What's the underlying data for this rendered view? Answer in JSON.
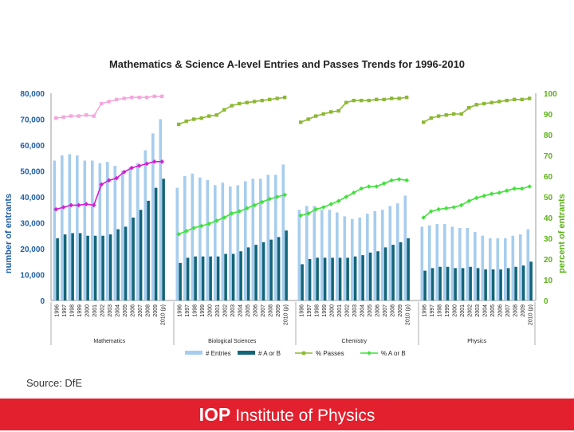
{
  "chart_data": {
    "type": "bar",
    "title": "Mathematics & Science A-level Entries and Passes Trends for 1996-2010",
    "ylabel": "number of entrants",
    "y2label": "percent of entrants",
    "ylim": [
      0,
      80000
    ],
    "y2lim": [
      0,
      100
    ],
    "y_ticks": [
      "0",
      "10,000",
      "20,000",
      "30,000",
      "40,000",
      "50,000",
      "60,000",
      "70,000",
      "80,000"
    ],
    "y2_ticks": [
      "0",
      "10",
      "20",
      "30",
      "40",
      "50",
      "60",
      "70",
      "80",
      "90",
      "100"
    ],
    "years": [
      "1996",
      "1997",
      "1998",
      "1999",
      "2000",
      "2001",
      "2002",
      "2003",
      "2004",
      "2005",
      "2006",
      "2007",
      "2008",
      "2009",
      "2010 (p)"
    ],
    "groups": [
      {
        "name": "Mathematics",
        "entries": [
          54000,
          56000,
          56500,
          56000,
          54000,
          54000,
          53000,
          53500,
          52000,
          50000,
          51500,
          53000,
          58000,
          64500,
          70000
        ],
        "ab": [
          24000,
          25500,
          26000,
          26000,
          25000,
          25000,
          25000,
          25500,
          27500,
          28500,
          32000,
          35000,
          38500,
          43500,
          47000
        ],
        "pct_pass": [
          88,
          88.5,
          89,
          89,
          89.5,
          89,
          95,
          96,
          97,
          97.5,
          98,
          98,
          98,
          98.5,
          98.5
        ],
        "pct_ab": [
          44,
          45,
          46,
          46,
          46.5,
          46,
          56,
          58,
          59,
          62,
          64,
          65,
          66,
          67,
          67
        ]
      },
      {
        "name": "Biological Sciences",
        "entries": [
          43500,
          48000,
          49000,
          47500,
          46500,
          44500,
          45500,
          44000,
          44500,
          46000,
          47000,
          47000,
          48500,
          48500,
          52500
        ],
        "ab": [
          14500,
          16500,
          17000,
          17000,
          17000,
          17000,
          18000,
          18000,
          19000,
          20500,
          21500,
          22500,
          23500,
          24500,
          27000
        ],
        "pct_pass": [
          85,
          86.5,
          87.5,
          88,
          89,
          89.5,
          92,
          94,
          95,
          95.5,
          96,
          96.5,
          97,
          97.5,
          98
        ],
        "pct_ab": [
          32,
          33.5,
          35,
          36,
          37,
          38.5,
          40,
          42,
          43,
          44.5,
          46,
          47.5,
          49,
          50,
          51
        ]
      },
      {
        "name": "Chemistry",
        "entries": [
          35000,
          36500,
          36500,
          35000,
          35000,
          34000,
          32500,
          31500,
          32000,
          33500,
          34500,
          35000,
          36500,
          37500,
          40500
        ],
        "ab": [
          14000,
          16000,
          16500,
          16500,
          16500,
          16500,
          16500,
          17000,
          17500,
          18500,
          19000,
          20500,
          21500,
          22500,
          24000
        ],
        "pct_pass": [
          86,
          87.5,
          89,
          90,
          91,
          91.5,
          95.5,
          96.5,
          96.5,
          96.5,
          97,
          97,
          97.5,
          97.5,
          98
        ],
        "pct_ab": [
          41,
          42,
          44,
          45,
          46.5,
          48,
          50,
          52,
          54,
          55,
          55,
          56.5,
          58,
          58.5,
          58
        ]
      },
      {
        "name": "Physics",
        "entries": [
          28500,
          29000,
          29500,
          29500,
          28500,
          28000,
          28000,
          26500,
          25000,
          24000,
          24000,
          24000,
          25000,
          25500,
          27500
        ],
        "ab": [
          11500,
          12500,
          13000,
          13000,
          12500,
          12500,
          13000,
          12500,
          12000,
          12000,
          12000,
          12500,
          13000,
          13500,
          15000
        ],
        "pct_pass": [
          86,
          88,
          89,
          89.5,
          90,
          90,
          93,
          94.5,
          95,
          95.5,
          96,
          96.5,
          97,
          97,
          97.5
        ],
        "pct_ab": [
          40,
          43,
          44,
          44.5,
          45,
          46,
          48,
          49.5,
          50.5,
          51.5,
          52,
          53,
          54,
          54,
          55
        ]
      }
    ],
    "legend": [
      "# Entries",
      "# A or B",
      "% Passes",
      "% A or B"
    ],
    "legend_position": "bottom-center"
  },
  "colors": {
    "entries": "#a7cdee",
    "ab": "#13657a",
    "pct_pass": "#8cb832",
    "pct_pass_math": "#f3a8dc",
    "pct_ab": "#40e23a",
    "pct_ab_math": "#d61ed0",
    "left_axis": "#1f5fa8",
    "right_axis": "#5ab014",
    "footer": "#e3202e"
  },
  "source": "Source: DfE",
  "footer": {
    "logo_abbr": "IOP",
    "logo_name": "Institute of Physics"
  }
}
